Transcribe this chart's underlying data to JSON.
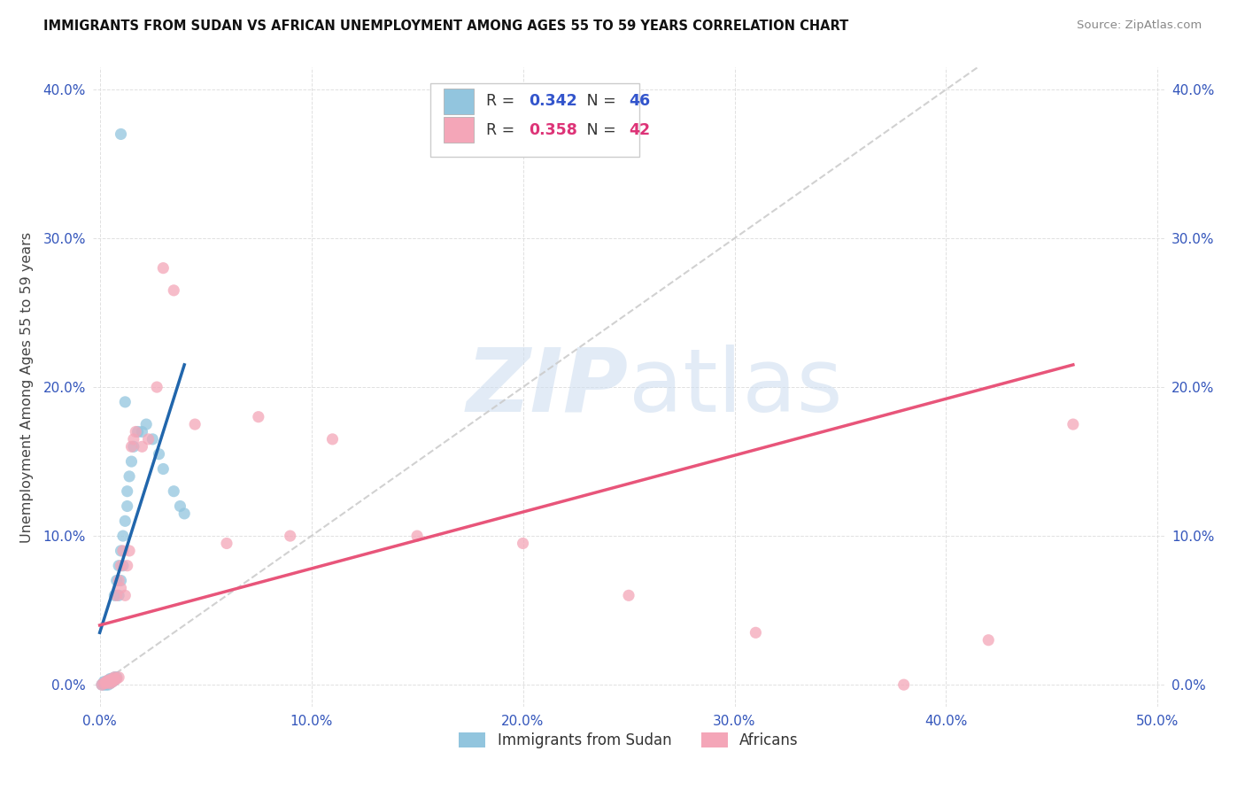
{
  "title": "IMMIGRANTS FROM SUDAN VS AFRICAN UNEMPLOYMENT AMONG AGES 55 TO 59 YEARS CORRELATION CHART",
  "source": "Source: ZipAtlas.com",
  "ylabel": "Unemployment Among Ages 55 to 59 years",
  "xlim": [
    -0.003,
    0.503
  ],
  "ylim": [
    -0.015,
    0.415
  ],
  "x_ticks": [
    0.0,
    0.1,
    0.2,
    0.3,
    0.4,
    0.5
  ],
  "x_tick_labels": [
    "0.0%",
    "10.0%",
    "20.0%",
    "30.0%",
    "40.0%",
    "50.0%"
  ],
  "y_ticks": [
    0.0,
    0.1,
    0.2,
    0.3,
    0.4
  ],
  "y_tick_labels": [
    "0.0%",
    "10.0%",
    "20.0%",
    "30.0%",
    "40.0%"
  ],
  "blue_R": "0.342",
  "blue_N": "46",
  "pink_R": "0.358",
  "pink_N": "42",
  "blue_color": "#92c5de",
  "pink_color": "#f4a6b8",
  "blue_line_color": "#2166ac",
  "pink_line_color": "#e8557a",
  "diagonal_color": "#cccccc",
  "watermark_color": "#d0dff0",
  "blue_scatter_x": [
    0.001,
    0.002,
    0.002,
    0.002,
    0.003,
    0.003,
    0.003,
    0.004,
    0.004,
    0.004,
    0.004,
    0.005,
    0.005,
    0.005,
    0.005,
    0.006,
    0.006,
    0.006,
    0.007,
    0.007,
    0.007,
    0.008,
    0.008,
    0.009,
    0.009,
    0.01,
    0.01,
    0.011,
    0.011,
    0.012,
    0.013,
    0.013,
    0.014,
    0.015,
    0.016,
    0.018,
    0.02,
    0.022,
    0.025,
    0.028,
    0.03,
    0.035,
    0.038,
    0.04,
    0.012,
    0.01
  ],
  "blue_scatter_y": [
    0.0,
    0.0,
    0.001,
    0.002,
    0.0,
    0.001,
    0.002,
    0.0,
    0.001,
    0.002,
    0.003,
    0.001,
    0.002,
    0.003,
    0.004,
    0.002,
    0.003,
    0.004,
    0.003,
    0.005,
    0.06,
    0.005,
    0.07,
    0.06,
    0.08,
    0.07,
    0.09,
    0.08,
    0.1,
    0.11,
    0.12,
    0.13,
    0.14,
    0.15,
    0.16,
    0.17,
    0.17,
    0.175,
    0.165,
    0.155,
    0.145,
    0.13,
    0.12,
    0.115,
    0.19,
    0.37
  ],
  "pink_scatter_x": [
    0.001,
    0.002,
    0.003,
    0.003,
    0.004,
    0.004,
    0.005,
    0.005,
    0.006,
    0.006,
    0.007,
    0.007,
    0.008,
    0.008,
    0.009,
    0.009,
    0.01,
    0.01,
    0.011,
    0.012,
    0.013,
    0.014,
    0.015,
    0.016,
    0.017,
    0.02,
    0.023,
    0.027,
    0.03,
    0.035,
    0.045,
    0.06,
    0.075,
    0.09,
    0.11,
    0.15,
    0.2,
    0.25,
    0.31,
    0.38,
    0.42,
    0.46
  ],
  "pink_scatter_y": [
    0.0,
    0.001,
    0.001,
    0.002,
    0.002,
    0.003,
    0.001,
    0.003,
    0.002,
    0.004,
    0.003,
    0.005,
    0.004,
    0.06,
    0.005,
    0.07,
    0.065,
    0.08,
    0.09,
    0.06,
    0.08,
    0.09,
    0.16,
    0.165,
    0.17,
    0.16,
    0.165,
    0.2,
    0.28,
    0.265,
    0.175,
    0.095,
    0.18,
    0.1,
    0.165,
    0.1,
    0.095,
    0.06,
    0.035,
    0.0,
    0.03,
    0.175
  ],
  "blue_line_x0": 0.0,
  "blue_line_x1": 0.04,
  "blue_line_y0": 0.035,
  "blue_line_y1": 0.215,
  "pink_line_x0": 0.0,
  "pink_line_x1": 0.46,
  "pink_line_y0": 0.04,
  "pink_line_y1": 0.215
}
